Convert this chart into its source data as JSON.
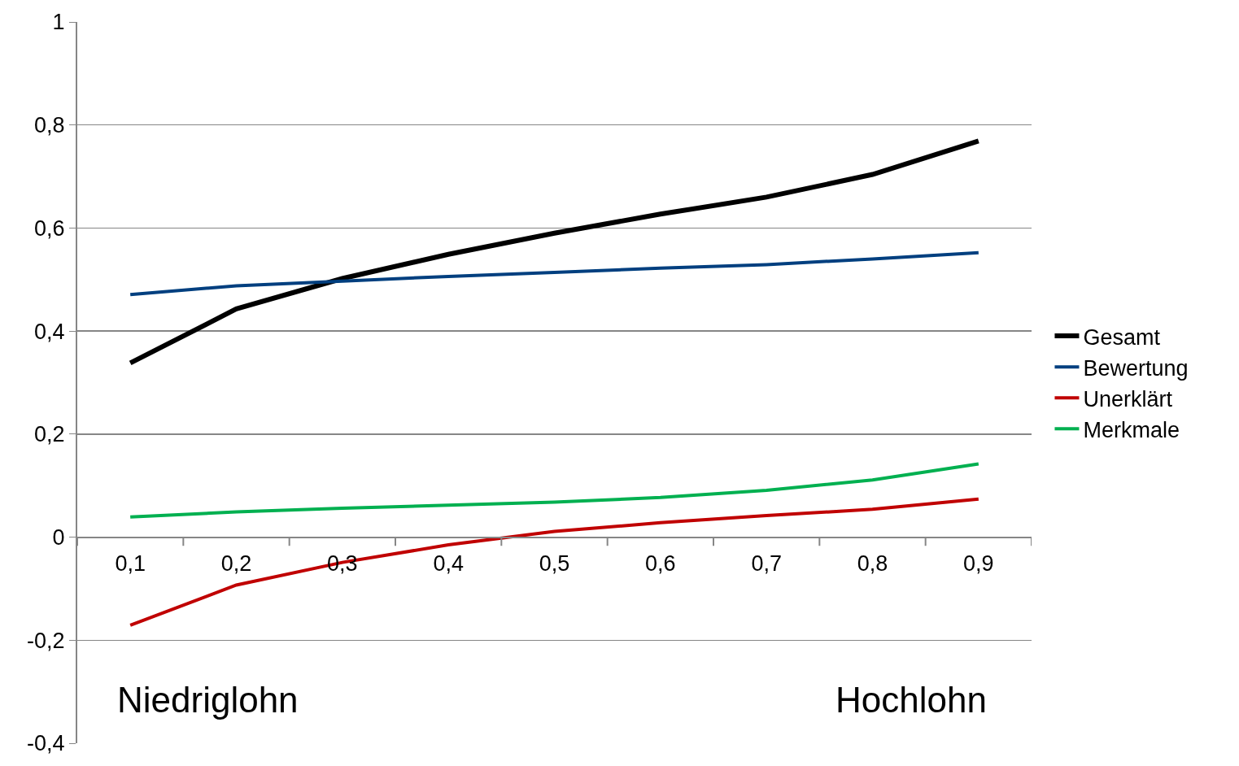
{
  "chart_data": {
    "type": "line",
    "categories": [
      "0,1",
      "0,2",
      "0,3",
      "0,4",
      "0,5",
      "0,6",
      "0,7",
      "0,8",
      "0,9"
    ],
    "series": [
      {
        "name": "Gesamt",
        "color": "#000000",
        "values": [
          0.338,
          0.443,
          0.502,
          0.549,
          0.59,
          0.627,
          0.66,
          0.704,
          0.769
        ]
      },
      {
        "name": "Bewertung",
        "color": "#003f7f",
        "values": [
          0.471,
          0.488,
          0.497,
          0.506,
          0.514,
          0.522,
          0.529,
          0.54,
          0.552
        ]
      },
      {
        "name": "Unerklärt",
        "color": "#c00000",
        "values": [
          -0.171,
          -0.093,
          -0.049,
          -0.015,
          0.011,
          0.028,
          0.042,
          0.054,
          0.074
        ]
      },
      {
        "name": "Merkmale",
        "color": "#00b050",
        "values": [
          0.039,
          0.049,
          0.056,
          0.062,
          0.068,
          0.077,
          0.091,
          0.111,
          0.142
        ]
      }
    ],
    "ylim": [
      -0.4,
      1
    ],
    "yticks": [
      {
        "value": -0.4,
        "label": "-0,4"
      },
      {
        "value": -0.2,
        "label": "-0,2"
      },
      0,
      {
        "value": 0.2,
        "label": "0,2"
      },
      {
        "value": 0.4,
        "label": "0,4"
      },
      {
        "value": 0.6,
        "label": "0,6"
      },
      {
        "value": 0.8,
        "label": "0,8"
      },
      1
    ],
    "grid": "y",
    "legend": "right",
    "marker": "none",
    "line_style": "solid",
    "annotations": [
      "Niedriglohn",
      "Hochlohn"
    ]
  }
}
